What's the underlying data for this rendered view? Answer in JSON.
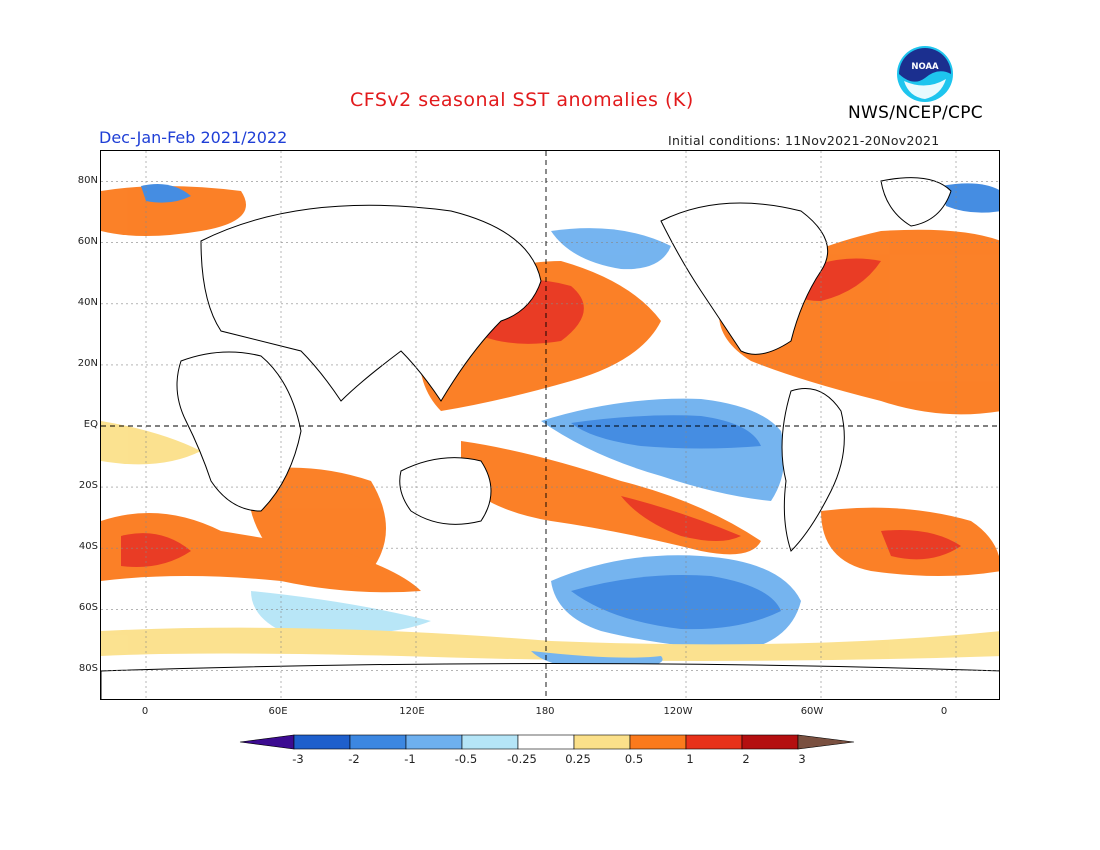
{
  "title": "CFSv2 seasonal SST anomalies (K)",
  "season": "Dec-Jan-Feb 2021/2022",
  "initial_conditions": "Initial conditions: 11Nov2021-20Nov2021",
  "agency": "NWS/NCEP/CPC",
  "logo": {
    "text": "NOAA",
    "icon": "noaa-logo-icon"
  },
  "map": {
    "projection": "cylindrical",
    "lon_range": [
      -20,
      380
    ],
    "lat_range": [
      -90,
      90
    ],
    "grid_lines": true,
    "reference_lines": [
      "equator",
      "dateline"
    ],
    "lat_labels": [
      "80N",
      "60N",
      "40N",
      "20N",
      "EQ",
      "20S",
      "40S",
      "60S",
      "80S"
    ],
    "lon_labels": [
      "0",
      "60E",
      "120E",
      "180",
      "120W",
      "60W",
      "0"
    ]
  },
  "colorbar": {
    "tick_labels": [
      "-3",
      "-2",
      "-1",
      "-0.5",
      "-0.25",
      "0.25",
      "0.5",
      "1",
      "2",
      "3"
    ],
    "colors": [
      "#3c0b91",
      "#1e5fcc",
      "#3c87e1",
      "#6eb0ef",
      "#b5e5f7",
      "#ffffff",
      "#fbe08a",
      "#fb7a1c",
      "#e8321a",
      "#b40f10",
      "#7a5040"
    ]
  }
}
